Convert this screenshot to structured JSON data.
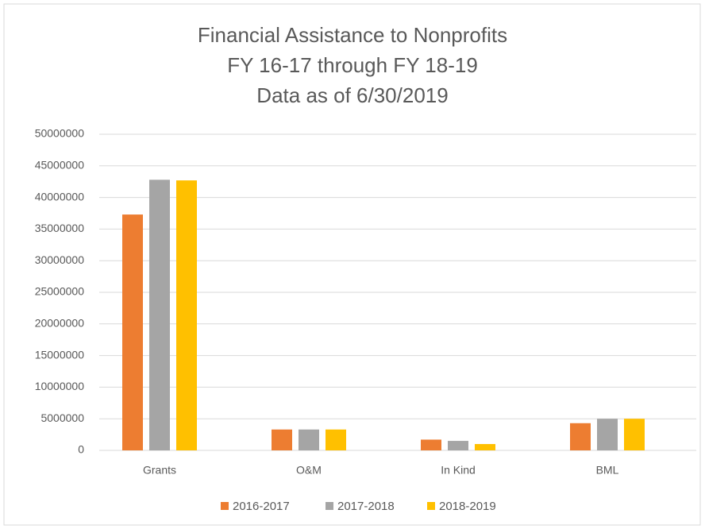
{
  "chart_data": {
    "type": "bar",
    "title": [
      "Financial Assistance to Nonprofits",
      "FY 16-17 through  FY 18-19",
      "Data as of 6/30/2019"
    ],
    "categories": [
      "Grants",
      "O&M",
      "In Kind",
      "BML"
    ],
    "series": [
      {
        "name": "2016-2017",
        "color": "#ed7d31",
        "values": [
          37300000,
          3300000,
          1700000,
          4300000
        ]
      },
      {
        "name": "2017-2018",
        "color": "#a5a5a5",
        "values": [
          42800000,
          3300000,
          1500000,
          5000000
        ]
      },
      {
        "name": "2018-2019",
        "color": "#ffc000",
        "values": [
          42700000,
          3300000,
          1000000,
          5000000
        ]
      }
    ],
    "ylim": [
      0,
      50000000
    ],
    "yticks": [
      0,
      5000000,
      10000000,
      15000000,
      20000000,
      25000000,
      30000000,
      35000000,
      40000000,
      45000000,
      50000000
    ],
    "grid": true,
    "legend": "bottom"
  }
}
